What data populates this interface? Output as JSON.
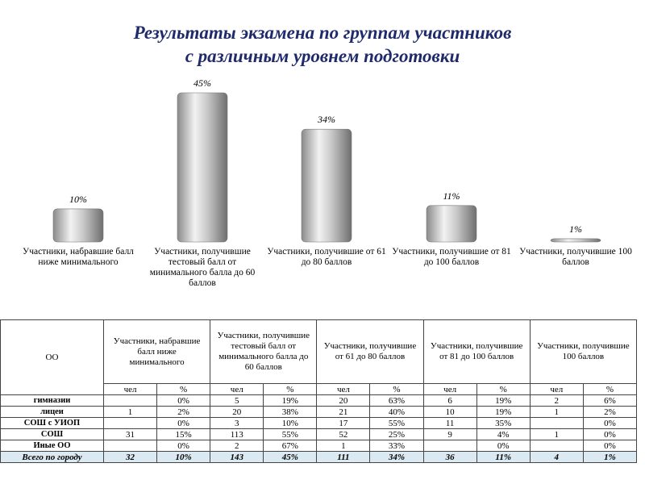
{
  "title_line1": "Результаты экзамена по группам участников",
  "title_line2": "с различным уровнем подготовки",
  "chart_data": {
    "type": "bar",
    "categories": [
      "Участники, набравшие балл ниже минимального",
      "Участники, получившие тестовый балл от минимального балла до 60 баллов",
      "Участники, получившие от 61 до 80 баллов",
      "Участники, получившие от 81 до 100 баллов",
      "Участники, получившие 100 баллов"
    ],
    "values": [
      10,
      45,
      34,
      11,
      1
    ],
    "value_labels": [
      "10%",
      "45%",
      "34%",
      "11%",
      "1%"
    ],
    "unit": "%",
    "ylim": [
      0,
      50
    ],
    "grid": false,
    "bar_color": "#b0b0b0"
  },
  "table": {
    "corner": "ОО",
    "groups": [
      "Участники, набравшие балл ниже минимального",
      "Участники, получившие тестовый балл от минимального балла до 60 баллов",
      "Участники, получившие от 61 до 80 баллов",
      "Участники, получившие от 81 до 100 баллов",
      "Участники, получившие 100 баллов"
    ],
    "sub": [
      "чел",
      "%"
    ],
    "rows": [
      {
        "name": "гимназии",
        "cells": [
          "",
          "0%",
          "5",
          "19%",
          "20",
          "63%",
          "6",
          "19%",
          "2",
          "6%"
        ]
      },
      {
        "name": "лицеи",
        "cells": [
          "1",
          "2%",
          "20",
          "38%",
          "21",
          "40%",
          "10",
          "19%",
          "1",
          "2%"
        ]
      },
      {
        "name": "СОШ с УИОП",
        "cells": [
          "",
          "0%",
          "3",
          "10%",
          "17",
          "55%",
          "11",
          "35%",
          "",
          "0%"
        ]
      },
      {
        "name": "СОШ",
        "cells": [
          "31",
          "15%",
          "113",
          "55%",
          "52",
          "25%",
          "9",
          "4%",
          "1",
          "0%"
        ]
      },
      {
        "name": "Иные ОО",
        "cells": [
          "",
          "0%",
          "2",
          "67%",
          "1",
          "33%",
          "",
          "0%",
          "",
          "0%"
        ]
      }
    ],
    "total": {
      "name": "Всего по городу",
      "cells": [
        "32",
        "10%",
        "143",
        "45%",
        "111",
        "34%",
        "36",
        "11%",
        "4",
        "1%"
      ]
    }
  }
}
